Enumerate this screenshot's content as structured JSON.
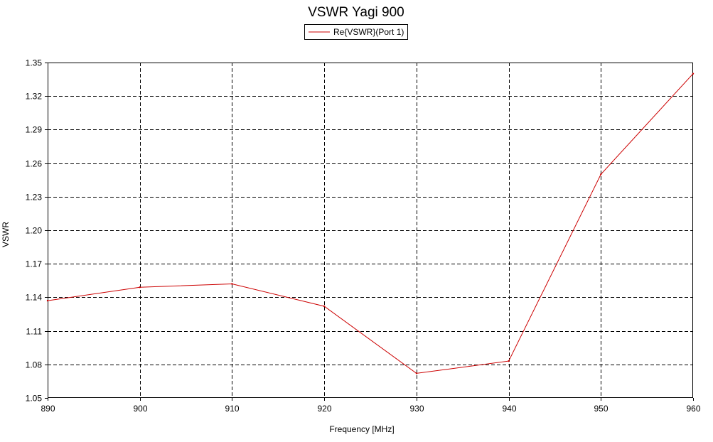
{
  "chart_data": {
    "type": "line",
    "title": "VSWR Yagi 900",
    "xlabel": "Frequency [MHz]",
    "ylabel": "VSWR",
    "xlim": [
      890,
      960
    ],
    "ylim": [
      1.05,
      1.35
    ],
    "grid": true,
    "legend_position": "top-center",
    "x_ticks": [
      890,
      900,
      910,
      920,
      930,
      940,
      950,
      960
    ],
    "x_tick_labels": [
      "890",
      "900",
      "910",
      "920",
      "930",
      "940",
      "950",
      "960"
    ],
    "y_ticks": [
      1.05,
      1.08,
      1.11,
      1.14,
      1.17,
      1.2,
      1.23,
      1.26,
      1.29,
      1.32,
      1.35
    ],
    "y_tick_labels": [
      "1.05",
      "1.08",
      "1.11",
      "1.14",
      "1.17",
      "1.20",
      "1.23",
      "1.26",
      "1.29",
      "1.32",
      "1.35"
    ],
    "series": [
      {
        "name": "Re{VSWR}(Port 1)",
        "color": "#cc0000",
        "x": [
          890,
          900,
          910,
          920,
          930,
          940,
          950,
          960
        ],
        "y": [
          1.137,
          1.149,
          1.152,
          1.132,
          1.072,
          1.083,
          1.25,
          1.34
        ]
      }
    ]
  }
}
